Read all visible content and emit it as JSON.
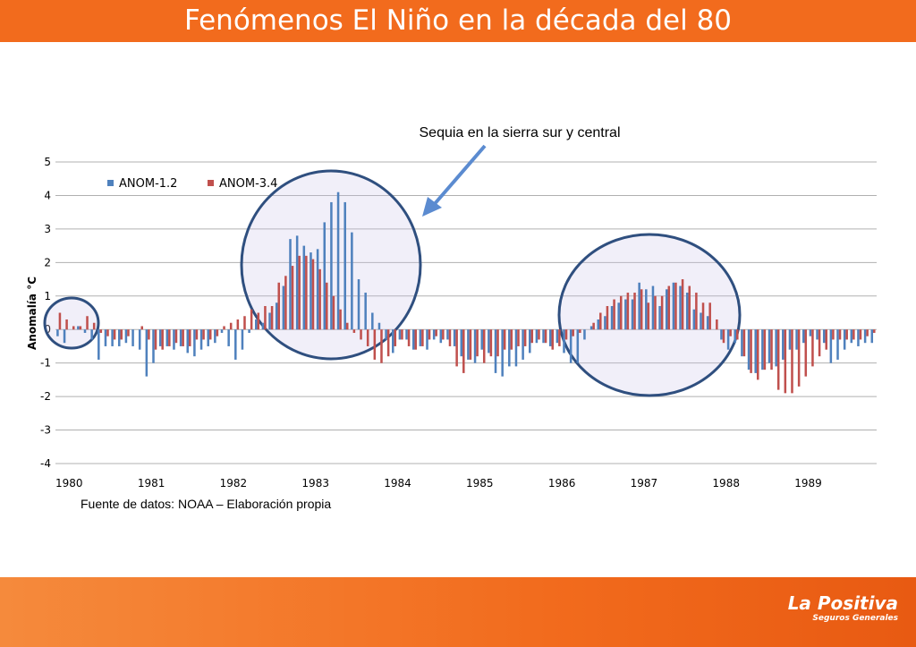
{
  "header": {
    "title": "Fenómenos El Niño en la década del 80"
  },
  "chart_data": {
    "type": "bar",
    "ylabel": "Anomalía °C",
    "annotation": "Sequia en la sierra sur y central",
    "source": "Fuente de datos: NOAA – Elaboración propia",
    "categories": [
      "1980",
      null,
      null,
      null,
      null,
      null,
      null,
      null,
      null,
      null,
      null,
      null,
      "1981",
      null,
      null,
      null,
      null,
      null,
      null,
      null,
      null,
      null,
      null,
      null,
      "1982",
      null,
      null,
      null,
      null,
      null,
      null,
      null,
      null,
      null,
      null,
      null,
      "1983",
      null,
      null,
      null,
      null,
      null,
      null,
      null,
      null,
      null,
      null,
      null,
      "1984",
      null,
      null,
      null,
      null,
      null,
      null,
      null,
      null,
      null,
      null,
      null,
      "1985",
      null,
      null,
      null,
      null,
      null,
      null,
      null,
      null,
      null,
      null,
      null,
      "1986",
      null,
      null,
      null,
      null,
      null,
      null,
      null,
      null,
      null,
      null,
      null,
      "1987",
      null,
      null,
      null,
      null,
      null,
      null,
      null,
      null,
      null,
      null,
      null,
      "1988",
      null,
      null,
      null,
      null,
      null,
      null,
      null,
      null,
      null,
      null,
      null,
      "1989",
      null,
      null,
      null,
      null,
      null,
      null,
      null,
      null,
      null,
      null,
      null
    ],
    "series": [
      {
        "name": "ANOM-1.2",
        "color": "#4f81bd",
        "values": [
          -0.2,
          -0.4,
          0.0,
          0.1,
          -0.1,
          -0.3,
          -0.9,
          -0.5,
          -0.5,
          -0.5,
          -0.4,
          -0.5,
          -0.6,
          -1.4,
          -1.0,
          -0.5,
          -0.5,
          -0.6,
          -0.5,
          -0.7,
          -0.8,
          -0.6,
          -0.5,
          -0.4,
          -0.1,
          -0.5,
          -0.9,
          -0.6,
          -0.1,
          0.3,
          0.2,
          0.5,
          0.8,
          1.3,
          2.7,
          2.8,
          2.5,
          2.3,
          2.4,
          3.2,
          3.8,
          4.1,
          3.8,
          2.9,
          1.5,
          1.1,
          0.5,
          0.2,
          -0.3,
          -0.7,
          -0.3,
          -0.3,
          -0.6,
          -0.5,
          -0.6,
          -0.3,
          -0.4,
          -0.3,
          -0.5,
          -0.8,
          -0.9,
          -1.0,
          -0.6,
          -0.7,
          -1.3,
          -1.4,
          -1.1,
          -1.1,
          -0.9,
          -0.7,
          -0.4,
          -0.4,
          -0.5,
          -0.4,
          -0.7,
          -1.0,
          -1.0,
          -0.3,
          0.1,
          0.3,
          0.4,
          0.7,
          0.8,
          0.9,
          0.9,
          1.4,
          1.2,
          1.3,
          0.7,
          1.2,
          1.4,
          1.3,
          1.1,
          0.6,
          0.5,
          0.4,
          0.0,
          -0.3,
          -0.6,
          -0.4,
          -0.8,
          -1.2,
          -1.3,
          -1.2,
          -1.0,
          -1.1,
          -0.9,
          -0.6,
          -0.6,
          -0.4,
          -0.2,
          -0.3,
          -0.4,
          -1.0,
          -0.9,
          -0.6,
          -0.4,
          -0.5,
          -0.4,
          -0.4
        ]
      },
      {
        "name": "ANOM-3.4",
        "color": "#c0504d",
        "values": [
          0.5,
          0.3,
          0.1,
          0.1,
          0.4,
          0.2,
          -0.1,
          -0.2,
          -0.3,
          -0.3,
          -0.2,
          0.0,
          0.1,
          -0.3,
          -0.6,
          -0.6,
          -0.5,
          -0.4,
          -0.5,
          -0.5,
          -0.3,
          -0.3,
          -0.3,
          -0.2,
          0.1,
          0.2,
          0.3,
          0.4,
          0.6,
          0.5,
          0.7,
          0.7,
          1.4,
          1.6,
          1.9,
          2.2,
          2.2,
          2.1,
          1.8,
          1.4,
          1.0,
          0.6,
          0.2,
          -0.1,
          -0.3,
          -0.5,
          -0.9,
          -1.0,
          -0.8,
          -0.5,
          -0.3,
          -0.5,
          -0.6,
          -0.5,
          -0.3,
          -0.2,
          -0.3,
          -0.5,
          -1.1,
          -1.3,
          -0.9,
          -0.8,
          -1.0,
          -0.8,
          -0.8,
          -0.6,
          -0.6,
          -0.5,
          -0.5,
          -0.4,
          -0.3,
          -0.4,
          -0.6,
          -0.5,
          -0.3,
          -0.2,
          -0.1,
          0.0,
          0.2,
          0.5,
          0.7,
          0.9,
          1.0,
          1.1,
          1.1,
          1.2,
          0.8,
          1.0,
          1.0,
          1.3,
          1.4,
          1.5,
          1.3,
          1.1,
          0.8,
          0.8,
          0.3,
          -0.4,
          -0.2,
          -0.3,
          -0.8,
          -1.3,
          -1.5,
          -1.2,
          -1.2,
          -1.8,
          -1.9,
          -1.9,
          -1.7,
          -1.4,
          -1.1,
          -0.8,
          -0.6,
          -0.3,
          -0.3,
          -0.3,
          -0.3,
          -0.3,
          -0.2,
          -0.1
        ]
      }
    ],
    "ylim": [
      -4,
      5
    ],
    "yticks": [
      -4,
      -3,
      -2,
      -1,
      0,
      1,
      2,
      3,
      4,
      5
    ],
    "grid": true,
    "legend": "top-left"
  },
  "logo": {
    "name": "La Positiva",
    "tagline": "Seguros Generales"
  }
}
